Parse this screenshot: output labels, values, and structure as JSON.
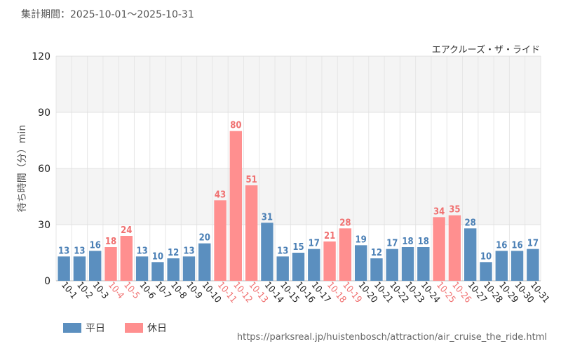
{
  "header": {
    "period": "集計期間：2025-10-01～2025-10-31"
  },
  "footer": {
    "url": "https://parksreal.jp/huistenbosch/attraction/air_cruise_the_ride.html"
  },
  "colors": {
    "weekday": "#5b8fbf",
    "holiday": "#ff8f8f",
    "weekday_text": "#4a7fb5",
    "holiday_text": "#f07070"
  },
  "chart_data": {
    "type": "bar",
    "title": "エアクルーズ・ザ・ライド",
    "ylabel": "待ち時間（分）min",
    "xlabel": "",
    "ylim": [
      0,
      120
    ],
    "yticks": [
      0,
      30,
      60,
      90,
      120
    ],
    "categories": [
      "10-1",
      "10-2",
      "10-3",
      "10-4",
      "10-5",
      "10-6",
      "10-7",
      "10-8",
      "10-9",
      "10-10",
      "10-11",
      "10-12",
      "10-13",
      "10-14",
      "10-15",
      "10-16",
      "10-17",
      "10-18",
      "10-19",
      "10-20",
      "10-21",
      "10-22",
      "10-23",
      "10-24",
      "10-25",
      "10-26",
      "10-27",
      "10-28",
      "10-29",
      "10-30",
      "10-31"
    ],
    "values": [
      13,
      13,
      16,
      18,
      24,
      13,
      10,
      12,
      13,
      20,
      43,
      80,
      51,
      31,
      13,
      15,
      17,
      21,
      28,
      19,
      12,
      17,
      18,
      18,
      34,
      35,
      28,
      10,
      16,
      16,
      17
    ],
    "day_type": [
      "平日",
      "平日",
      "平日",
      "休日",
      "休日",
      "平日",
      "平日",
      "平日",
      "平日",
      "平日",
      "休日",
      "休日",
      "休日",
      "平日",
      "平日",
      "平日",
      "平日",
      "休日",
      "休日",
      "平日",
      "平日",
      "平日",
      "平日",
      "平日",
      "休日",
      "休日",
      "平日",
      "平日",
      "平日",
      "平日",
      "平日"
    ],
    "legend": [
      {
        "name": "平日",
        "color": "#5b8fbf"
      },
      {
        "name": "休日",
        "color": "#ff8f8f"
      }
    ],
    "grid": true
  }
}
